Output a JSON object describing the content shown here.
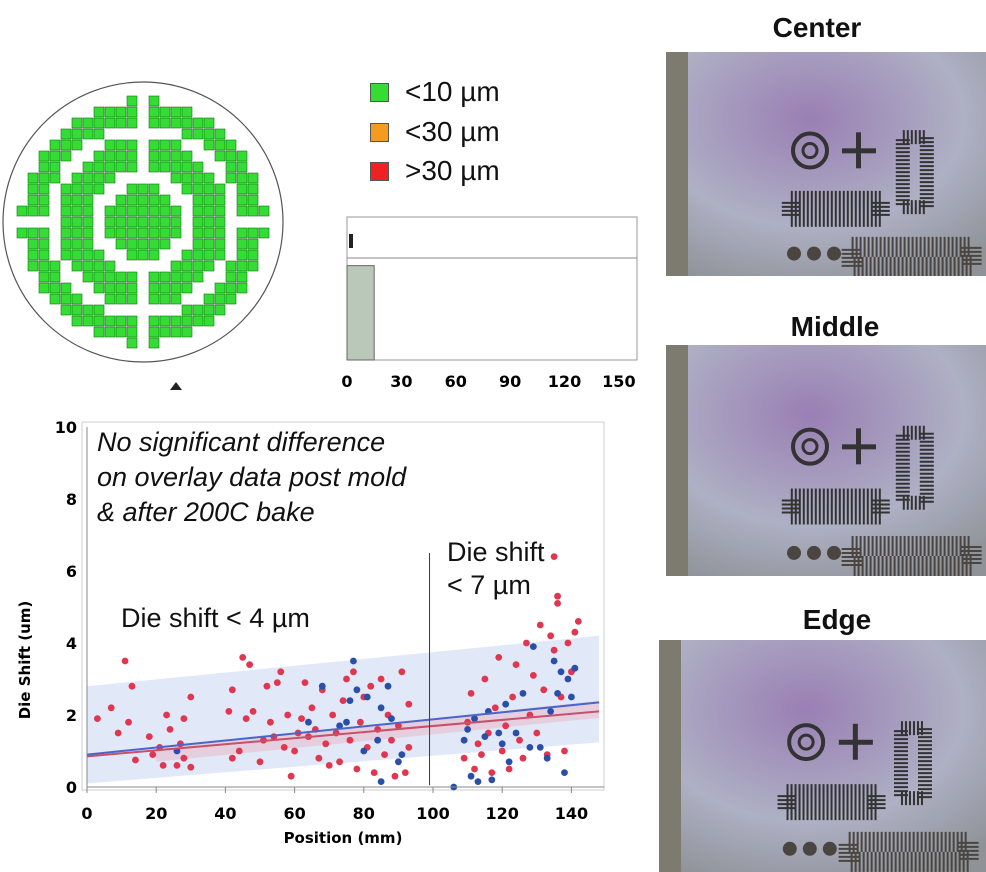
{
  "wafer_map": {
    "legend": [
      {
        "label": "<10 µm",
        "color": "#33dd33"
      },
      {
        "label": "<30 µm",
        "color": "#f39c1f"
      },
      {
        "label": ">30 µm",
        "color": "#ee2222"
      }
    ]
  },
  "histogram": {
    "type": "bar",
    "x_ticks": [
      "0",
      "30",
      "60",
      "90",
      "120",
      "150"
    ],
    "bins": [
      {
        "from": 0,
        "to": 15,
        "fraction": 0.85
      }
    ],
    "bar_color": "#b9c8b9"
  },
  "chart_data": {
    "type": "scatter",
    "title": "",
    "xlabel": "Position (mm)",
    "ylabel": "Die Shift (um)",
    "xlim": [
      0,
      150
    ],
    "ylim": [
      0,
      10
    ],
    "x_ticks": [
      "0",
      "20",
      "40",
      "60",
      "80",
      "100",
      "120",
      "140"
    ],
    "y_ticks": [
      "0",
      "2",
      "4",
      "6",
      "8",
      "10"
    ],
    "annotations": {
      "note": [
        "No significant difference",
        "on overlay data post mold",
        "& after 200C bake"
      ],
      "left": "Die shift < 4 µm",
      "right": [
        "Die shift",
        "< 7 µm"
      ]
    },
    "divider_x": 99,
    "series": [
      {
        "name": "red",
        "color": "#e0364f",
        "fit": [
          [
            0,
            0.85
          ],
          [
            148,
            2.1
          ]
        ],
        "band": [
          [
            20,
            1.1
          ],
          [
            148,
            2.4
          ]
        ],
        "points": [
          [
            3,
            1.9
          ],
          [
            7,
            2.2
          ],
          [
            9,
            1.5
          ],
          [
            11,
            3.5
          ],
          [
            12,
            1.8
          ],
          [
            13,
            2.8
          ],
          [
            14,
            0.75
          ],
          [
            18,
            1.4
          ],
          [
            19,
            0.9
          ],
          [
            21,
            1.1
          ],
          [
            22,
            0.6
          ],
          [
            23,
            2
          ],
          [
            24,
            1.6
          ],
          [
            26,
            0.6
          ],
          [
            27,
            1.2
          ],
          [
            28,
            0.8
          ],
          [
            28,
            1.9
          ],
          [
            30,
            2.5
          ],
          [
            30,
            0.55
          ],
          [
            41,
            2.1
          ],
          [
            42,
            0.8
          ],
          [
            42,
            2.7
          ],
          [
            44,
            1
          ],
          [
            45,
            3.6
          ],
          [
            46,
            1.9
          ],
          [
            47,
            3.4
          ],
          [
            48,
            2.1
          ],
          [
            50,
            0.7
          ],
          [
            51,
            1.3
          ],
          [
            52,
            2.8
          ],
          [
            53,
            1.8
          ],
          [
            54,
            1.4
          ],
          [
            55,
            2.9
          ],
          [
            56,
            3.2
          ],
          [
            57,
            1.1
          ],
          [
            58,
            2
          ],
          [
            59,
            0.3
          ],
          [
            60,
            1
          ],
          [
            61,
            1.5
          ],
          [
            62,
            1.9
          ],
          [
            63,
            2.9
          ],
          [
            64,
            1.4
          ],
          [
            65,
            2.2
          ],
          [
            66,
            1.6
          ],
          [
            67,
            0.8
          ],
          [
            68,
            2.7
          ],
          [
            69,
            1.2
          ],
          [
            70,
            0.6
          ],
          [
            71,
            2
          ],
          [
            72,
            1.5
          ],
          [
            73,
            0.7
          ],
          [
            74,
            2.4
          ],
          [
            75,
            3
          ],
          [
            76,
            1.3
          ],
          [
            77,
            3.2
          ],
          [
            78,
            0.5
          ],
          [
            79,
            1.8
          ],
          [
            80,
            2.5
          ],
          [
            81,
            1.1
          ],
          [
            82,
            2.8
          ],
          [
            83,
            0.4
          ],
          [
            84,
            1.6
          ],
          [
            85,
            3
          ],
          [
            86,
            0.9
          ],
          [
            87,
            2
          ],
          [
            88,
            1.3
          ],
          [
            89,
            0.3
          ],
          [
            90,
            1.7
          ],
          [
            91,
            3.2
          ],
          [
            92,
            0.4
          ],
          [
            93,
            2.3
          ],
          [
            93,
            1.1
          ],
          [
            109,
            0.8
          ],
          [
            110,
            1.8
          ],
          [
            111,
            2.6
          ],
          [
            112,
            0.5
          ],
          [
            113,
            1.2
          ],
          [
            114,
            0.9
          ],
          [
            115,
            3
          ],
          [
            116,
            1.5
          ],
          [
            117,
            0.4
          ],
          [
            118,
            2.2
          ],
          [
            119,
            3.6
          ],
          [
            120,
            1
          ],
          [
            121,
            1.7
          ],
          [
            122,
            0.5
          ],
          [
            123,
            2.5
          ],
          [
            124,
            3.4
          ],
          [
            125,
            1.3
          ],
          [
            126,
            0.8
          ],
          [
            127,
            4
          ],
          [
            128,
            2
          ],
          [
            129,
            3.1
          ],
          [
            130,
            1.5
          ],
          [
            131,
            4.5
          ],
          [
            132,
            2.7
          ],
          [
            133,
            0.9
          ],
          [
            134,
            4.2
          ],
          [
            135,
            6.4
          ],
          [
            135,
            3.8
          ],
          [
            136,
            5.3
          ],
          [
            137,
            2.5
          ],
          [
            138,
            1
          ],
          [
            139,
            4
          ],
          [
            140,
            3.2
          ],
          [
            141,
            4.3
          ],
          [
            142,
            4.6
          ],
          [
            136,
            5.1
          ]
        ]
      },
      {
        "name": "blue",
        "color": "#2a4fa8",
        "fit": [
          [
            0,
            0.9
          ],
          [
            148,
            2.35
          ]
        ],
        "band": [
          [
            0,
            2.8
          ],
          [
            148,
            4.2
          ]
        ],
        "points": [
          [
            26,
            1
          ],
          [
            64,
            1.8
          ],
          [
            68,
            2.8
          ],
          [
            73,
            1.7
          ],
          [
            75,
            1.8
          ],
          [
            76,
            2.4
          ],
          [
            77,
            3.5
          ],
          [
            78,
            2.7
          ],
          [
            80,
            1
          ],
          [
            81,
            2.5
          ],
          [
            84,
            1.3
          ],
          [
            85,
            2.2
          ],
          [
            85,
            0.15
          ],
          [
            87,
            2.8
          ],
          [
            88,
            1.9
          ],
          [
            90,
            0.7
          ],
          [
            91,
            0.9
          ],
          [
            106,
            0
          ],
          [
            109,
            1.3
          ],
          [
            110,
            1.6
          ],
          [
            111,
            0.3
          ],
          [
            112,
            1.9
          ],
          [
            113,
            0.15
          ],
          [
            115,
            1.4
          ],
          [
            116,
            2.1
          ],
          [
            117,
            0.2
          ],
          [
            119,
            1.5
          ],
          [
            120,
            1.2
          ],
          [
            121,
            2.3
          ],
          [
            122,
            0.7
          ],
          [
            124,
            1.5
          ],
          [
            126,
            2.6
          ],
          [
            128,
            1.1
          ],
          [
            129,
            3.9
          ],
          [
            131,
            1.1
          ],
          [
            133,
            0.8
          ],
          [
            134,
            2.1
          ],
          [
            135,
            3.5
          ],
          [
            136,
            2.6
          ],
          [
            137,
            3.2
          ],
          [
            138,
            0.4
          ],
          [
            139,
            3
          ],
          [
            140,
            2.5
          ],
          [
            141,
            3.3
          ]
        ]
      }
    ]
  },
  "photos": [
    {
      "title": "Center"
    },
    {
      "title": "Middle"
    },
    {
      "title": "Edge"
    }
  ]
}
